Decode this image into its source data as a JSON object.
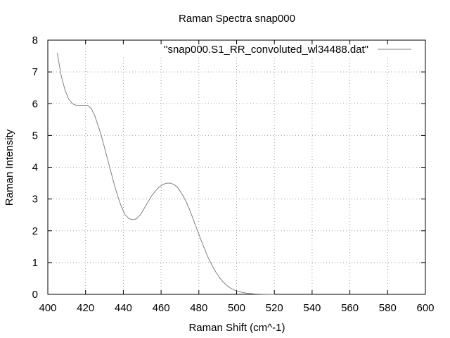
{
  "chart_data": {
    "type": "line",
    "title": "Raman Spectra snap000",
    "xlabel": "Raman Shift (cm^-1)",
    "ylabel": "Raman Intensity",
    "xlim": [
      400,
      600
    ],
    "ylim": [
      0,
      8
    ],
    "xticks": [
      400,
      420,
      440,
      460,
      480,
      500,
      520,
      540,
      560,
      580,
      600
    ],
    "yticks": [
      0,
      1,
      2,
      3,
      4,
      5,
      6,
      7,
      8
    ],
    "grid": true,
    "legend_position": "top-right",
    "line_color": "#808080",
    "series": [
      {
        "name": "\"snap000.S1_RR_convoluted_wl34488.dat\"",
        "x": [
          405,
          407,
          409,
          411,
          413,
          415,
          417,
          419,
          421,
          423,
          425,
          427,
          429,
          431,
          433,
          435,
          437,
          439,
          441,
          443,
          445,
          447,
          449,
          451,
          453,
          455,
          457,
          459,
          461,
          463,
          465,
          467,
          469,
          471,
          473,
          475,
          477,
          479,
          481,
          483,
          485,
          487,
          489,
          491,
          493,
          495,
          497,
          499,
          501,
          503,
          505,
          507,
          510,
          513,
          516,
          520
        ],
        "y": [
          7.6,
          6.9,
          6.45,
          6.15,
          6.0,
          5.95,
          5.95,
          5.95,
          5.95,
          5.85,
          5.6,
          5.25,
          4.85,
          4.4,
          3.95,
          3.5,
          3.1,
          2.75,
          2.5,
          2.38,
          2.35,
          2.38,
          2.5,
          2.7,
          2.9,
          3.1,
          3.25,
          3.38,
          3.46,
          3.5,
          3.5,
          3.45,
          3.34,
          3.17,
          2.95,
          2.68,
          2.37,
          2.05,
          1.73,
          1.43,
          1.15,
          0.91,
          0.7,
          0.52,
          0.38,
          0.27,
          0.19,
          0.13,
          0.09,
          0.06,
          0.04,
          0.025,
          0.012,
          0.005,
          0.002,
          0.0
        ]
      }
    ]
  }
}
